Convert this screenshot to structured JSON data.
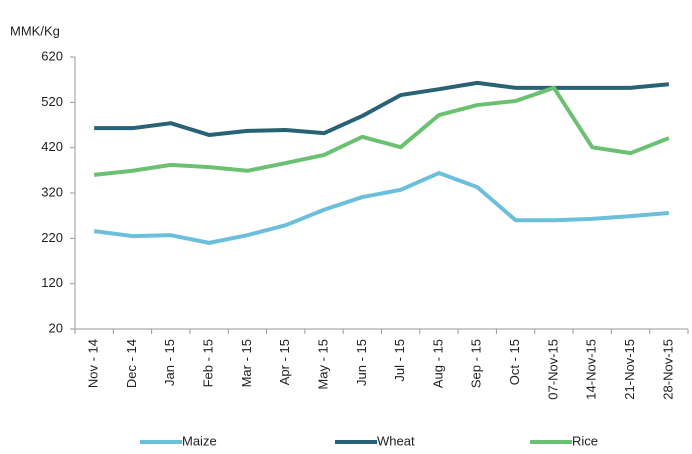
{
  "chart_data": {
    "type": "line",
    "y_label": "MMK/Kg",
    "categories": [
      "Nov - 14",
      "Dec - 14",
      "Jan - 15",
      "Feb - 15",
      "Mar - 15",
      "Apr - 15",
      "May - 15",
      "Jun - 15",
      "Jul - 15",
      "Aug - 15",
      "Sep - 15",
      "Oct - 15",
      "07-Nov-15",
      "14-Nov-15",
      "21-Nov-15",
      "28-Nov-15"
    ],
    "series": [
      {
        "name": "Maize",
        "color": "#6cbfdb",
        "values": [
          236,
          225,
          227,
          210,
          227,
          249,
          283,
          311,
          327,
          364,
          333,
          260,
          260,
          263,
          269,
          276
        ]
      },
      {
        "name": "Wheat",
        "color": "#2a6275",
        "values": [
          463,
          463,
          474,
          448,
          457,
          459,
          452,
          490,
          536,
          549,
          563,
          552,
          552,
          552,
          552,
          560
        ]
      },
      {
        "name": "Rice",
        "color": "#6cc072",
        "values": [
          360,
          369,
          382,
          377,
          369,
          386,
          404,
          444,
          421,
          492,
          514,
          523,
          552,
          421,
          408,
          441
        ]
      }
    ],
    "ylim": [
      20,
      620
    ],
    "yticks": [
      20,
      120,
      220,
      320,
      420,
      520,
      620
    ],
    "grid": false,
    "legend": "bottom"
  }
}
